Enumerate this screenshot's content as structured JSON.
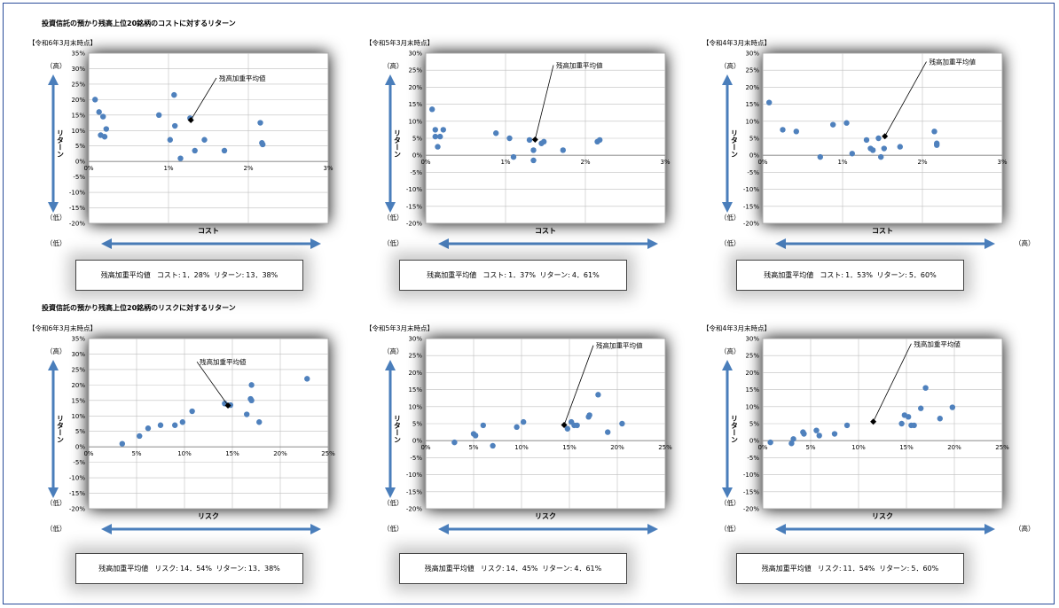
{
  "sections": [
    {
      "title": "投資信託の預かり残高上位20銘柄のコストに対するリターン"
    },
    {
      "title": "投資信託の預かり残高上位20銘柄のリスクに対するリターン"
    }
  ],
  "labels": {
    "high": "（高）",
    "low": "（低）",
    "return_axis": "リターン",
    "cost_axis": "コスト",
    "risk_axis": "リスク",
    "weighted_avg": "残高加重平均値",
    "cost_prefix": "コスト:",
    "risk_prefix": "リスク:",
    "return_prefix": "リターン:"
  },
  "colors": {
    "point": "#4f81bd",
    "arrow": "#4a7ebb",
    "highlight": "#000000",
    "grid": "#bfbfbf"
  },
  "chart_data": [
    {
      "type": "scatter",
      "period": "【令和6年3月末時点】",
      "xlabel": "コスト",
      "ylabel": "リターン",
      "xlim": [
        0,
        3
      ],
      "ylim": [
        -20,
        35
      ],
      "xticks": [
        0,
        1,
        2,
        3
      ],
      "x_suffix": "%",
      "yticks": [
        -20,
        -15,
        -10,
        -5,
        0,
        5,
        10,
        15,
        20,
        25,
        30,
        35
      ],
      "show_right_high": false,
      "points": [
        [
          0.08,
          20
        ],
        [
          0.13,
          16
        ],
        [
          0.18,
          14.5
        ],
        [
          0.15,
          8.5
        ],
        [
          0.2,
          8
        ],
        [
          0.22,
          10.5
        ],
        [
          0.88,
          15
        ],
        [
          1.02,
          7
        ],
        [
          1.07,
          21.5
        ],
        [
          1.08,
          11.5
        ],
        [
          1.15,
          1
        ],
        [
          1.27,
          14
        ],
        [
          1.33,
          3.5
        ],
        [
          1.45,
          7
        ],
        [
          1.7,
          3.5
        ],
        [
          2.15,
          12.5
        ],
        [
          2.17,
          6
        ],
        [
          2.18,
          5.5
        ]
      ],
      "avg": {
        "x": 1.28,
        "y": 13.38
      },
      "annot": {
        "x": 1.6,
        "y": 27
      },
      "summary": {
        "x_text": "1．28%",
        "y_text": "13．38%"
      }
    },
    {
      "type": "scatter",
      "period": "【令和5年3月末時点】",
      "xlabel": "コスト",
      "ylabel": "リターン",
      "xlim": [
        0,
        3
      ],
      "ylim": [
        -20,
        30
      ],
      "xticks": [
        0,
        1,
        2,
        3
      ],
      "x_suffix": "%",
      "yticks": [
        -20,
        -15,
        -10,
        -5,
        0,
        5,
        10,
        15,
        20,
        25,
        30
      ],
      "show_right_high": false,
      "points": [
        [
          0.08,
          13.5
        ],
        [
          0.12,
          7.5
        ],
        [
          0.12,
          5.5
        ],
        [
          0.18,
          5.5
        ],
        [
          0.22,
          7.5
        ],
        [
          0.15,
          2.5
        ],
        [
          0.88,
          6.5
        ],
        [
          1.05,
          5
        ],
        [
          1.1,
          -0.5
        ],
        [
          1.3,
          4.5
        ],
        [
          1.35,
          1.5
        ],
        [
          1.35,
          -1.5
        ],
        [
          1.45,
          3.5
        ],
        [
          1.48,
          4
        ],
        [
          1.72,
          1.5
        ],
        [
          2.15,
          4
        ],
        [
          2.18,
          4.5
        ]
      ],
      "avg": {
        "x": 1.37,
        "y": 4.61
      },
      "annot": {
        "x": 1.6,
        "y": 26.5
      },
      "summary": {
        "x_text": "1．37%",
        "y_text": "4．61%"
      }
    },
    {
      "type": "scatter",
      "period": "【令和4年3月末時点】",
      "xlabel": "コスト",
      "ylabel": "リターン",
      "xlim": [
        0,
        3
      ],
      "ylim": [
        -20,
        30
      ],
      "xticks": [
        0,
        1,
        2,
        3
      ],
      "x_suffix": "%",
      "yticks": [
        -20,
        -15,
        -10,
        -5,
        0,
        5,
        10,
        15,
        20,
        25,
        30
      ],
      "show_right_high": true,
      "points": [
        [
          0.08,
          15.5
        ],
        [
          0.25,
          7.5
        ],
        [
          0.42,
          7
        ],
        [
          0.88,
          9
        ],
        [
          1.05,
          9.5
        ],
        [
          0.72,
          -0.5
        ],
        [
          1.12,
          0.5
        ],
        [
          1.3,
          4.5
        ],
        [
          1.35,
          2
        ],
        [
          1.38,
          1.5
        ],
        [
          1.45,
          5
        ],
        [
          1.48,
          -0.5
        ],
        [
          1.52,
          2
        ],
        [
          1.72,
          2.5
        ],
        [
          2.15,
          7
        ],
        [
          2.18,
          3.5
        ],
        [
          2.18,
          3
        ]
      ],
      "avg": {
        "x": 1.53,
        "y": 5.6
      },
      "annot": {
        "x": 2.05,
        "y": 27.5
      },
      "summary": {
        "x_text": "1．53%",
        "y_text": "5．60%"
      }
    },
    {
      "type": "scatter",
      "period": "【令和6年3月末時点】",
      "xlabel": "リスク",
      "ylabel": "リターン",
      "xlim": [
        0,
        25
      ],
      "ylim": [
        -20,
        35
      ],
      "xticks": [
        0,
        5,
        10,
        15,
        20,
        25
      ],
      "x_suffix": "%",
      "yticks": [
        -20,
        -15,
        -10,
        -5,
        0,
        5,
        10,
        15,
        20,
        25,
        30,
        35
      ],
      "show_right_high": false,
      "points": [
        [
          3.5,
          1
        ],
        [
          5.3,
          3.5
        ],
        [
          6.2,
          6
        ],
        [
          7.5,
          7
        ],
        [
          9,
          7
        ],
        [
          9.8,
          8
        ],
        [
          10.8,
          11.5
        ],
        [
          14.2,
          14
        ],
        [
          14.8,
          13.5
        ],
        [
          16.5,
          10.5
        ],
        [
          16.9,
          15.5
        ],
        [
          17,
          15
        ],
        [
          17,
          20
        ],
        [
          17.8,
          8
        ],
        [
          22.8,
          22
        ]
      ],
      "avg": {
        "x": 14.54,
        "y": 13.38
      },
      "annot": {
        "x": 11.3,
        "y": 27.5
      },
      "summary": {
        "x_text": "14．54%",
        "y_text": "13．38%"
      }
    },
    {
      "type": "scatter",
      "period": "【令和5年3月末時点】",
      "xlabel": "リスク",
      "ylabel": "リターン",
      "xlim": [
        0,
        25
      ],
      "ylim": [
        -20,
        30
      ],
      "xticks": [
        0,
        5,
        10,
        15,
        20,
        25
      ],
      "x_suffix": "%",
      "yticks": [
        -20,
        -15,
        -10,
        -5,
        0,
        5,
        10,
        15,
        20,
        25,
        30
      ],
      "show_right_high": false,
      "points": [
        [
          3,
          -0.5
        ],
        [
          5,
          2
        ],
        [
          5.2,
          1.5
        ],
        [
          6,
          4.5
        ],
        [
          7,
          -1.5
        ],
        [
          9.5,
          4
        ],
        [
          10.2,
          5.5
        ],
        [
          14.8,
          3.5
        ],
        [
          15.2,
          5.5
        ],
        [
          15.5,
          4.5
        ],
        [
          15.8,
          4.5
        ],
        [
          17,
          7
        ],
        [
          17.1,
          7.5
        ],
        [
          18,
          13.5
        ],
        [
          19,
          2.5
        ],
        [
          20.5,
          5
        ]
      ],
      "avg": {
        "x": 14.45,
        "y": 4.61
      },
      "annot": {
        "x": 17.5,
        "y": 28
      },
      "summary": {
        "x_text": "14．45%",
        "y_text": "4．61%"
      }
    },
    {
      "type": "scatter",
      "period": "【令和4年3月末時点】",
      "xlabel": "リスク",
      "ylabel": "リターン",
      "xlim": [
        0,
        25
      ],
      "ylim": [
        -20,
        30
      ],
      "xticks": [
        0,
        5,
        10,
        15,
        20,
        25
      ],
      "x_suffix": "%",
      "yticks": [
        -20,
        -15,
        -10,
        -5,
        0,
        5,
        10,
        15,
        20,
        25,
        30
      ],
      "show_right_high": true,
      "points": [
        [
          0.8,
          -0.5
        ],
        [
          3,
          -0.8
        ],
        [
          3.2,
          0.5
        ],
        [
          4.2,
          2.5
        ],
        [
          4.3,
          2
        ],
        [
          5.6,
          3
        ],
        [
          5.9,
          1.5
        ],
        [
          7.5,
          2
        ],
        [
          8.8,
          4.5
        ],
        [
          14.5,
          5
        ],
        [
          14.8,
          7.5
        ],
        [
          15.2,
          7
        ],
        [
          15.5,
          4.5
        ],
        [
          15.8,
          4.5
        ],
        [
          16.5,
          9.5
        ],
        [
          17,
          15.5
        ],
        [
          18.5,
          6.5
        ],
        [
          19.8,
          9.8
        ]
      ],
      "avg": {
        "x": 11.54,
        "y": 5.6
      },
      "annot": {
        "x": 15.5,
        "y": 28.5
      },
      "summary": {
        "x_text": "11．54%",
        "y_text": "5．60%"
      }
    }
  ]
}
